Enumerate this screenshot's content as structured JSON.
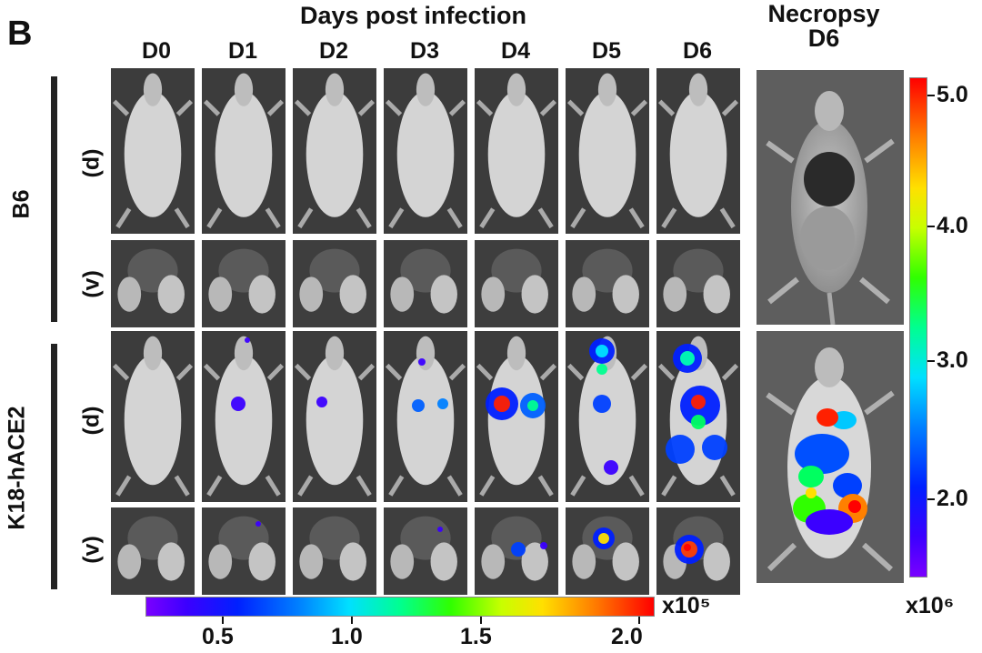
{
  "panel_letter": "B",
  "top_title": "Days post infection",
  "necropsy_title": [
    "Necropsy",
    "D6"
  ],
  "days": [
    "D0",
    "D1",
    "D2",
    "D3",
    "D4",
    "D5",
    "D6"
  ],
  "groups": [
    "B6",
    "K18-hACE2"
  ],
  "views": [
    "(d)",
    "(v)"
  ],
  "colorbar_horizontal": {
    "ticks": [
      "0.5",
      "1.0",
      "1.5",
      "2.0"
    ],
    "unit": "x10⁵"
  },
  "colorbar_vertical": {
    "ticks": [
      "5.0",
      "4.0",
      "3.0",
      "2.0"
    ],
    "unit": "x10⁶"
  }
}
